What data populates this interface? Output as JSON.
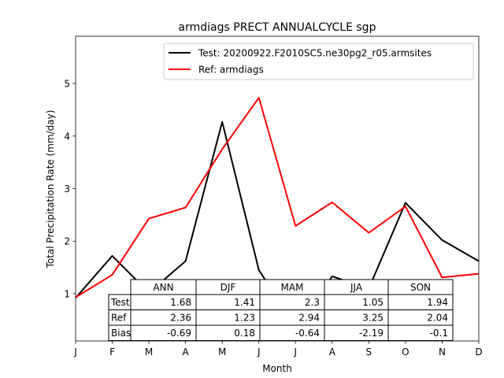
{
  "chart_data": {
    "type": "line",
    "title": "armdiags PRECT ANNUALCYCLE sgp",
    "xlabel": "Month",
    "ylabel": "Total Precipitation Rate (mm/day)",
    "categories": [
      "J",
      "F",
      "M",
      "A",
      "M",
      "J",
      "J",
      "A",
      "S",
      "O",
      "N",
      "D"
    ],
    "ylim": [
      0.1,
      5.9
    ],
    "yticks": [
      1,
      2,
      3,
      4,
      5
    ],
    "grid": false,
    "legend_position": "top-right",
    "series": [
      {
        "name": "Test: 20200922.F2010SC5.ne30pg2_r05.armsites",
        "color": "#000000",
        "values": [
          0.92,
          1.72,
          1.02,
          1.62,
          4.27,
          1.45,
          0.37,
          1.33,
          1.1,
          2.73,
          2.02,
          1.62
        ]
      },
      {
        "name": "Ref: armdiags",
        "color": "#ff0000",
        "values": [
          0.93,
          1.36,
          2.43,
          2.64,
          3.75,
          4.73,
          2.29,
          2.74,
          2.16,
          2.66,
          1.31,
          1.38
        ]
      }
    ],
    "table": {
      "columns": [
        "ANN",
        "DJF",
        "MAM",
        "JJA",
        "SON"
      ],
      "rows": [
        {
          "label": "Test",
          "values": [
            "1.68",
            "1.41",
            "2.3",
            "1.05",
            "1.94"
          ]
        },
        {
          "label": "Ref",
          "values": [
            "2.36",
            "1.23",
            "2.94",
            "3.25",
            "2.04"
          ]
        },
        {
          "label": "Bias",
          "values": [
            "-0.69",
            "0.18",
            "-0.64",
            "-2.19",
            "-0.1"
          ]
        }
      ]
    }
  }
}
